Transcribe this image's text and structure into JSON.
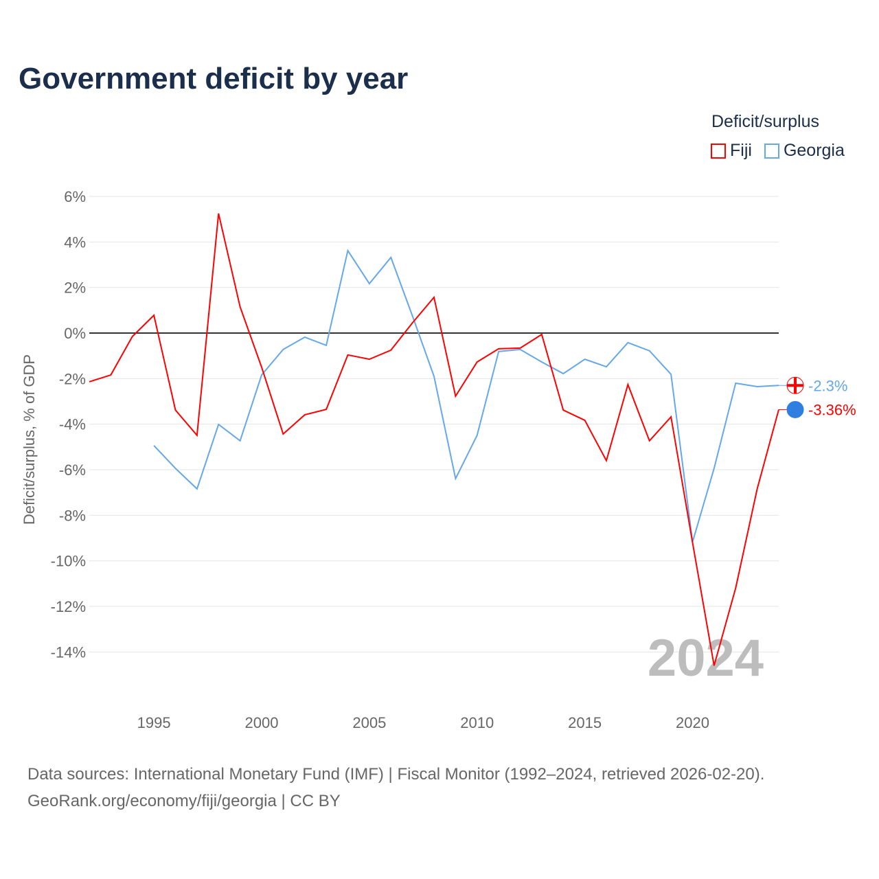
{
  "chart_data": {
    "type": "line",
    "title": "Government deficit by year",
    "ylabel": "Deficit/surplus, % of GDP",
    "xlabel": "",
    "ylim": [
      -16,
      6
    ],
    "xlim": [
      1992,
      2024
    ],
    "yticks": [
      6,
      4,
      2,
      0,
      -2,
      -4,
      -6,
      -8,
      -10,
      -12,
      -14
    ],
    "ytick_labels": [
      "6%",
      "4%",
      "2%",
      "0%",
      "-2%",
      "-4%",
      "-6%",
      "-8%",
      "-10%",
      "-12%",
      "-14%"
    ],
    "xticks": [
      1995,
      2000,
      2005,
      2010,
      2015,
      2020
    ],
    "xtick_labels": [
      "1995",
      "2000",
      "2005",
      "2010",
      "2015",
      "2020"
    ],
    "legend_title": "Deficit/surplus",
    "legend_placement": "top-right",
    "grid": true,
    "year_watermark": "2024",
    "series": [
      {
        "name": "Fiji",
        "color": "#ff0000",
        "end_label": "-3.36%",
        "x": [
          1992,
          1993,
          1994,
          1995,
          1996,
          1997,
          1998,
          1999,
          2000,
          2001,
          2002,
          2003,
          2004,
          2005,
          2006,
          2007,
          2008,
          2009,
          2010,
          2011,
          2012,
          2013,
          2014,
          2015,
          2016,
          2017,
          2018,
          2019,
          2020,
          2021,
          2022,
          2023,
          2024
        ],
        "values": [
          -2.14,
          -1.84,
          -0.15,
          0.78,
          -3.38,
          -4.49,
          5.25,
          1.15,
          -1.5,
          -4.43,
          -3.59,
          -3.35,
          -0.96,
          -1.15,
          -0.75,
          0.45,
          1.57,
          -2.77,
          -1.27,
          -0.69,
          -0.66,
          -0.06,
          -3.38,
          -3.83,
          -5.6,
          -2.26,
          -4.73,
          -3.68,
          -9.2,
          -14.6,
          -11.2,
          -6.84,
          -3.36
        ]
      },
      {
        "name": "Georgia",
        "color": "#64a7ea",
        "end_label": "-2.3%",
        "x": [
          1995,
          1996,
          1997,
          1998,
          1999,
          2000,
          2001,
          2002,
          2003,
          2004,
          2005,
          2006,
          2007,
          2008,
          2009,
          2010,
          2011,
          2012,
          2013,
          2014,
          2015,
          2016,
          2017,
          2018,
          2019,
          2020,
          2021,
          2022,
          2023,
          2024
        ],
        "values": [
          -4.94,
          -5.94,
          -6.84,
          -4.01,
          -4.73,
          -1.84,
          -0.72,
          -0.18,
          -0.54,
          3.62,
          2.17,
          3.32,
          0.75,
          -1.9,
          -6.39,
          -4.49,
          -0.81,
          -0.72,
          -1.27,
          -1.78,
          -1.15,
          -1.48,
          -0.42,
          -0.78,
          -1.81,
          -9.17,
          -5.94,
          -2.2,
          -2.35,
          -2.3
        ]
      }
    ]
  },
  "footer": {
    "sources": "Data sources: International Monetary Fund (IMF) | Fiscal Monitor (1992–2024, retrieved 2026-02-20).",
    "credit": "GeoRank.org/economy/fiji/georgia | CC BY"
  }
}
